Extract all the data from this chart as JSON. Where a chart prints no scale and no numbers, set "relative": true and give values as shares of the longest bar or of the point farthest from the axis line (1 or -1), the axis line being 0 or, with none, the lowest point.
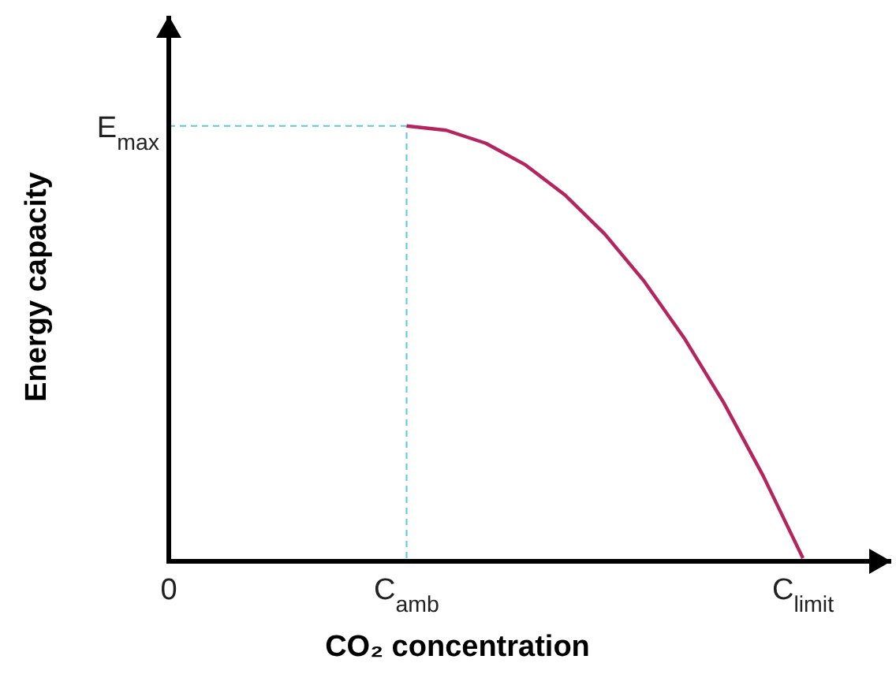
{
  "chart_data": {
    "type": "line",
    "xlabel": "CO₂ concentration",
    "ylabel": "Energy capacity",
    "relative": true,
    "categories": [
      "0",
      null,
      null,
      null,
      null,
      null,
      "C$_{amb}$",
      null,
      null,
      null,
      null,
      null,
      null,
      null,
      null,
      null,
      "C$_{limit}$"
    ],
    "series": [
      {
        "color": "#b5245e",
        "values": [
          null,
          null,
          null,
          null,
          null,
          null,
          1,
          0.99,
          0.96,
          0.91,
          0.84,
          0.75,
          0.64,
          0.51,
          0.36,
          0.19,
          0
        ]
      }
    ],
    "annotations": [
      "E$_{max}$"
    ],
    "ref_lines": [
      {
        "axis": "x",
        "value": "C$_{amb}$",
        "color": "#5bc8e0",
        "line_style": "dashed"
      },
      {
        "axis": "y",
        "value": 1,
        "color": "#5bc8e0",
        "line_style": "dashed"
      }
    ],
    "line_style": "solid"
  }
}
